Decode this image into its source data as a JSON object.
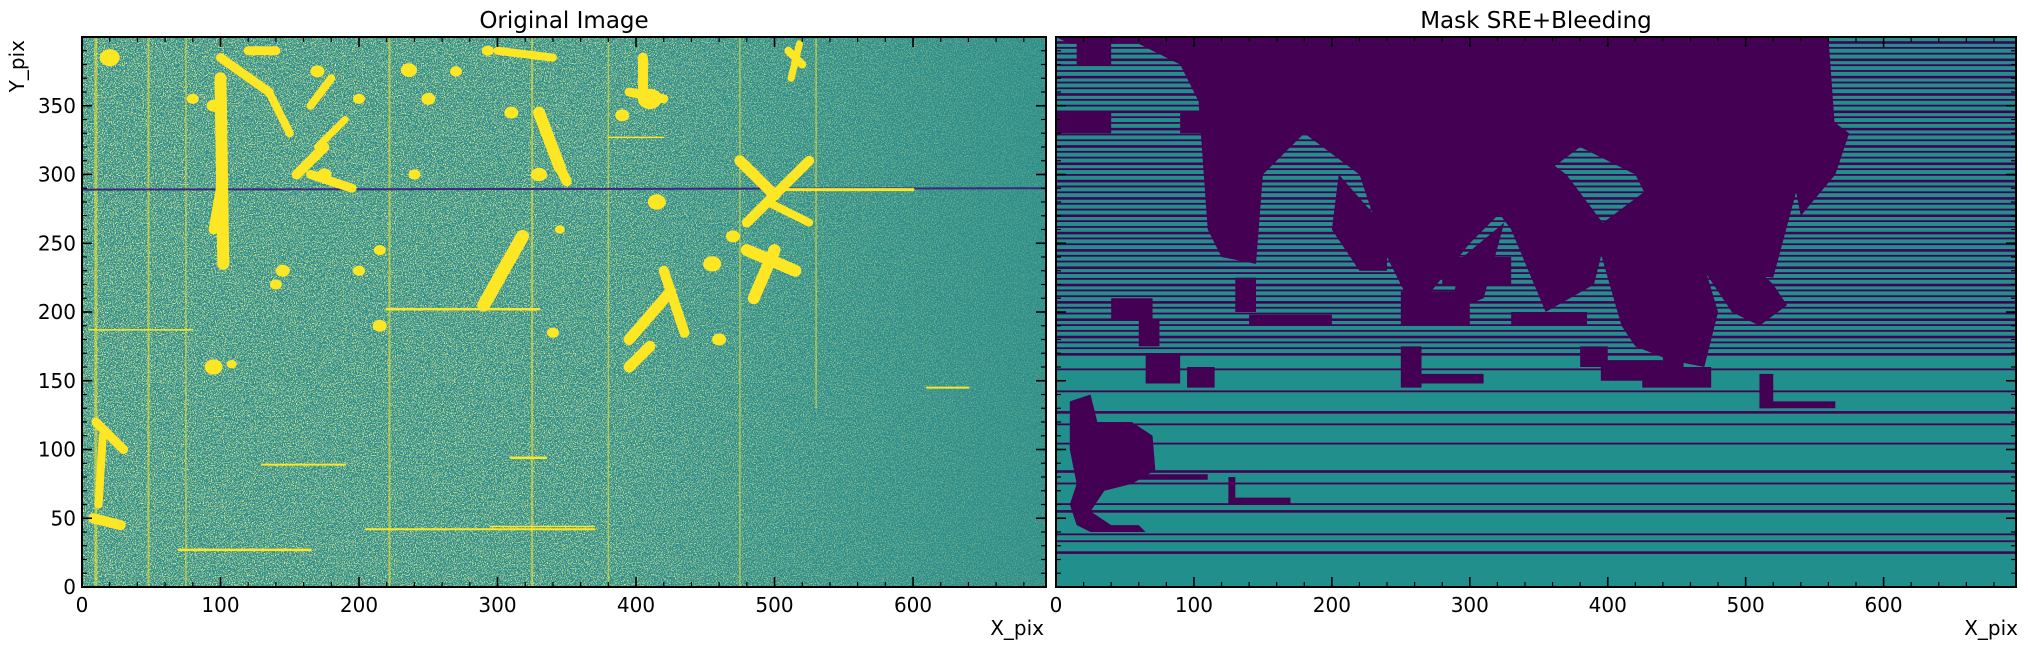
{
  "chart_data": [
    {
      "type": "heatmap",
      "title": "Original Image",
      "xlabel": "X_pix",
      "ylabel": "Y_pix",
      "xlim": [
        0,
        696
      ],
      "ylim": [
        0,
        400
      ],
      "xticks": [
        0,
        100,
        200,
        300,
        400,
        500,
        600
      ],
      "yticks": [
        0,
        50,
        100,
        150,
        200,
        250,
        300,
        350
      ],
      "colormap": "viridis",
      "colors": {
        "background": "#2c8e8a",
        "bright": "#fde725",
        "dark": "#3b2a7a",
        "noise": "#6cc55f"
      }
    },
    {
      "type": "heatmap",
      "title": "Mask SRE+Bleeding",
      "xlabel": "X_pix",
      "ylabel": "",
      "xlim": [
        0,
        696
      ],
      "ylim": [
        0,
        400
      ],
      "xticks": [
        0,
        100,
        200,
        300,
        400,
        500,
        600
      ],
      "yticks": [
        0,
        50,
        100,
        150,
        200,
        250,
        300,
        350
      ],
      "colormap": "viridis",
      "colors": {
        "unmasked": "#21908d",
        "masked": "#440154"
      }
    }
  ]
}
